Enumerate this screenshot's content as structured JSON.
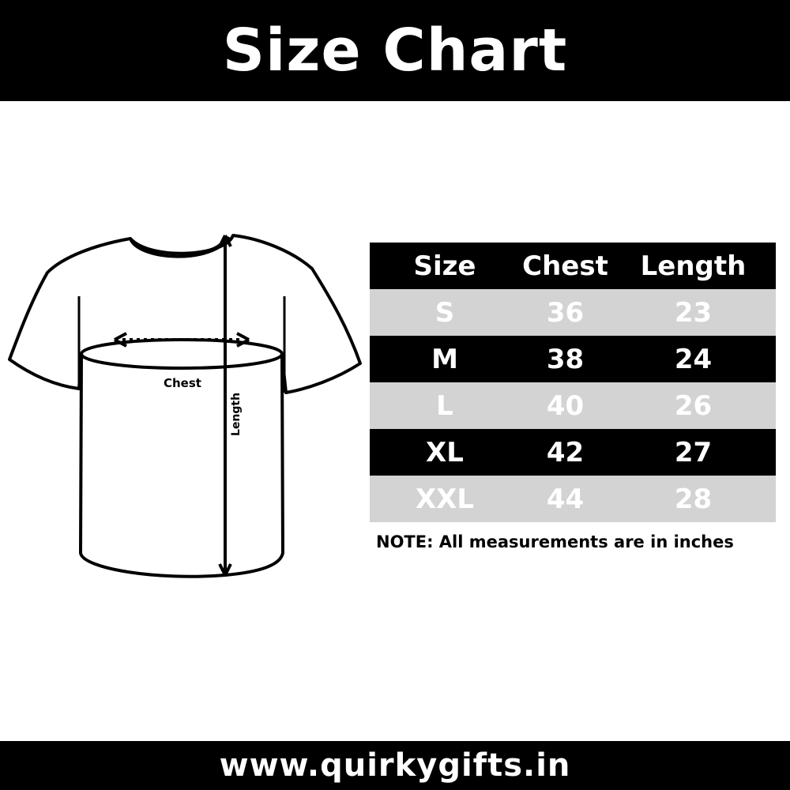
{
  "title": "Size Chart",
  "footer": "www.quirkygifts.in",
  "diagram": {
    "chest_label": "Chest",
    "length_label": "Length"
  },
  "table": {
    "headers": [
      "Size",
      "Chest",
      "Length"
    ],
    "rows": [
      [
        "S",
        "36",
        "23"
      ],
      [
        "M",
        "38",
        "24"
      ],
      [
        "L",
        "40",
        "26"
      ],
      [
        "XL",
        "42",
        "27"
      ],
      [
        "XXL",
        "44",
        "28"
      ]
    ]
  },
  "note": "NOTE: All measurements are in inches",
  "colors": {
    "dark_row": "#000000",
    "light_row": "#d3d3d3",
    "text": "#ffffff"
  }
}
